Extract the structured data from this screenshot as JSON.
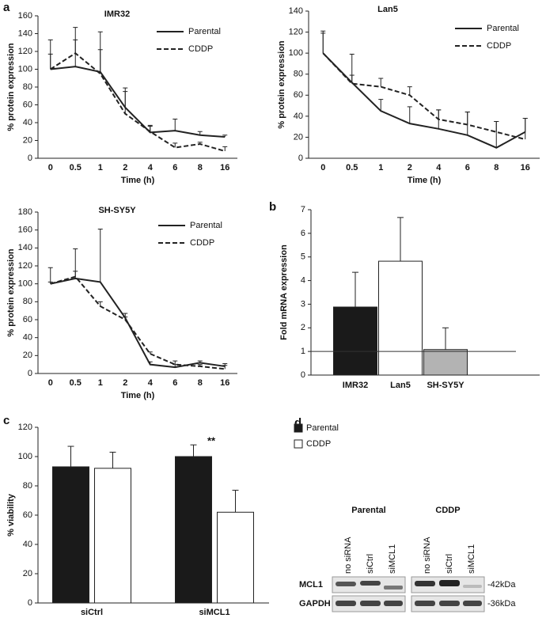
{
  "panel_labels": [
    "a",
    "b",
    "c",
    "d"
  ],
  "chart_data": [
    {
      "type": "line",
      "title": "IMR32",
      "x_label": "Time (h)",
      "y_label": "% protein expression",
      "categories": [
        "0",
        "0.5",
        "1",
        "2",
        "4",
        "6",
        "8",
        "16"
      ],
      "series": [
        {
          "name": "Parental",
          "color": "#222222",
          "dashed": false,
          "values": [
            100,
            103,
            97,
            57,
            29,
            31,
            26,
            24
          ],
          "errors": [
            17,
            30,
            45,
            22,
            8,
            13,
            4,
            2
          ]
        },
        {
          "name": "CDDP",
          "color": "#222222",
          "dashed": true,
          "values": [
            100,
            118,
            95,
            50,
            30,
            12,
            16,
            8
          ],
          "errors": [
            33,
            29,
            27,
            25,
            6,
            5,
            2,
            5
          ]
        }
      ],
      "ylim": [
        0,
        160
      ],
      "yticks": [
        0,
        20,
        40,
        60,
        80,
        100,
        120,
        140,
        160
      ]
    },
    {
      "type": "line",
      "title": "Lan5",
      "x_label": "Time (h)",
      "y_label": "% protein expression",
      "categories": [
        "0",
        "0.5",
        "1",
        "2",
        "4",
        "6",
        "8",
        "16"
      ],
      "series": [
        {
          "name": "Parental",
          "color": "#222222",
          "dashed": false,
          "values": [
            100,
            72,
            45,
            33,
            28,
            22,
            10,
            25
          ],
          "errors": [
            21,
            27,
            11,
            16,
            18,
            22,
            25,
            13
          ]
        },
        {
          "name": "CDDP",
          "color": "#222222",
          "dashed": true,
          "values": [
            100,
            71,
            68,
            60,
            37,
            32,
            25,
            18
          ],
          "errors": [
            19,
            8,
            8,
            8,
            9,
            12,
            10,
            20
          ]
        }
      ],
      "ylim": [
        0,
        140
      ],
      "yticks": [
        0,
        20,
        40,
        60,
        80,
        100,
        120,
        140
      ]
    },
    {
      "type": "line",
      "title": "SH-SY5Y",
      "x_label": "Time (h)",
      "y_label": "% protein expression",
      "categories": [
        "0",
        "0.5",
        "1",
        "2",
        "4",
        "6",
        "8",
        "16"
      ],
      "series": [
        {
          "name": "Parental",
          "color": "#222222",
          "dashed": false,
          "values": [
            100,
            106,
            102,
            62,
            10,
            7,
            12,
            8
          ],
          "errors": [
            18,
            33,
            59,
            5,
            3,
            3,
            2,
            3
          ]
        },
        {
          "name": "CDDP",
          "color": "#222222",
          "dashed": true,
          "values": [
            100,
            108,
            75,
            60,
            22,
            10,
            8,
            5
          ],
          "errors": [
            2,
            6,
            5,
            3,
            2,
            4,
            2,
            4
          ]
        }
      ],
      "ylim": [
        0,
        180
      ],
      "yticks": [
        0,
        20,
        40,
        60,
        80,
        100,
        120,
        140,
        160,
        180
      ]
    },
    {
      "type": "bar",
      "y_label": "Fold mRNA expression",
      "categories": [
        "IMR32",
        "Lan5",
        "SH-SY5Y"
      ],
      "values": [
        2.88,
        4.82,
        1.08
      ],
      "errors": [
        1.47,
        1.85,
        0.92
      ],
      "colors": [
        "#1a1a1a",
        "#ffffff",
        "#b3b3b3"
      ],
      "reference_line": 1,
      "ylim": [
        0,
        7
      ],
      "yticks": [
        0,
        1,
        2,
        3,
        4,
        5,
        6,
        7
      ]
    },
    {
      "type": "grouped_bar",
      "y_label": "% viability",
      "categories": [
        "siCtrl",
        "siMCL1"
      ],
      "series": [
        {
          "name": "Parental",
          "color": "#1a1a1a",
          "values": [
            93,
            100
          ],
          "errors": [
            14,
            8
          ]
        },
        {
          "name": "CDDP",
          "color": "#ffffff",
          "values": [
            92,
            62
          ],
          "errors": [
            11,
            15
          ]
        }
      ],
      "annotation": "**",
      "ylim": [
        0,
        120
      ],
      "yticks": [
        0,
        20,
        40,
        60,
        80,
        100,
        120
      ]
    }
  ],
  "blot": {
    "groups": [
      "Parental",
      "CDDP"
    ],
    "lanes": [
      "no siRNA",
      "siCtrl",
      "siMCL1",
      "no siRNA",
      "siCtrl",
      "siMCL1"
    ],
    "rows": [
      "MCL1",
      "GAPDH"
    ],
    "sizes": [
      "-42kDa",
      "-36kDa"
    ]
  }
}
